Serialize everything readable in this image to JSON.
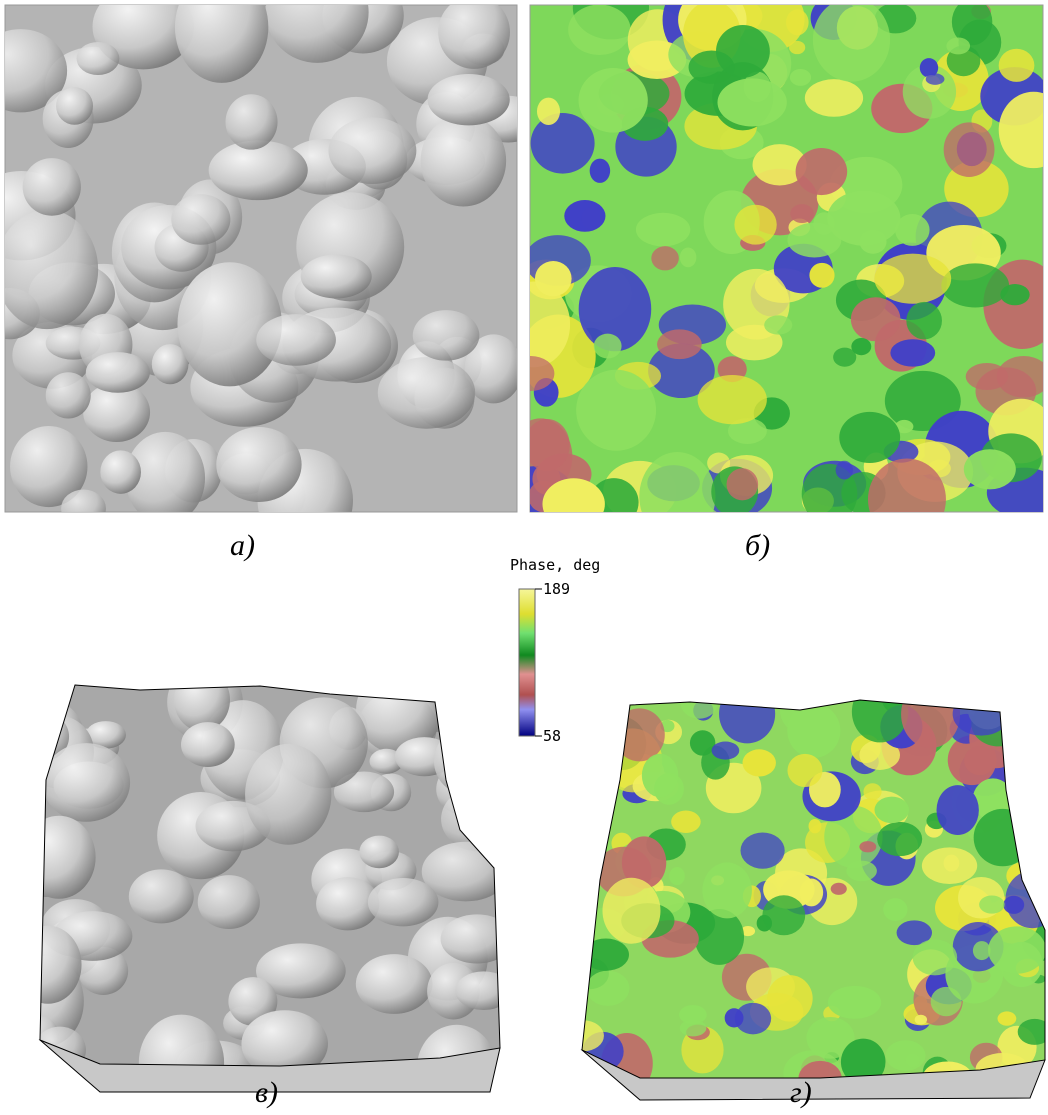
{
  "panels": [
    {
      "label": "а)"
    },
    {
      "label": "б)"
    },
    {
      "label": "в)"
    },
    {
      "label": "г)"
    }
  ],
  "colorbar": {
    "title": "Phase, deg",
    "max": 189,
    "min": 58
  }
}
